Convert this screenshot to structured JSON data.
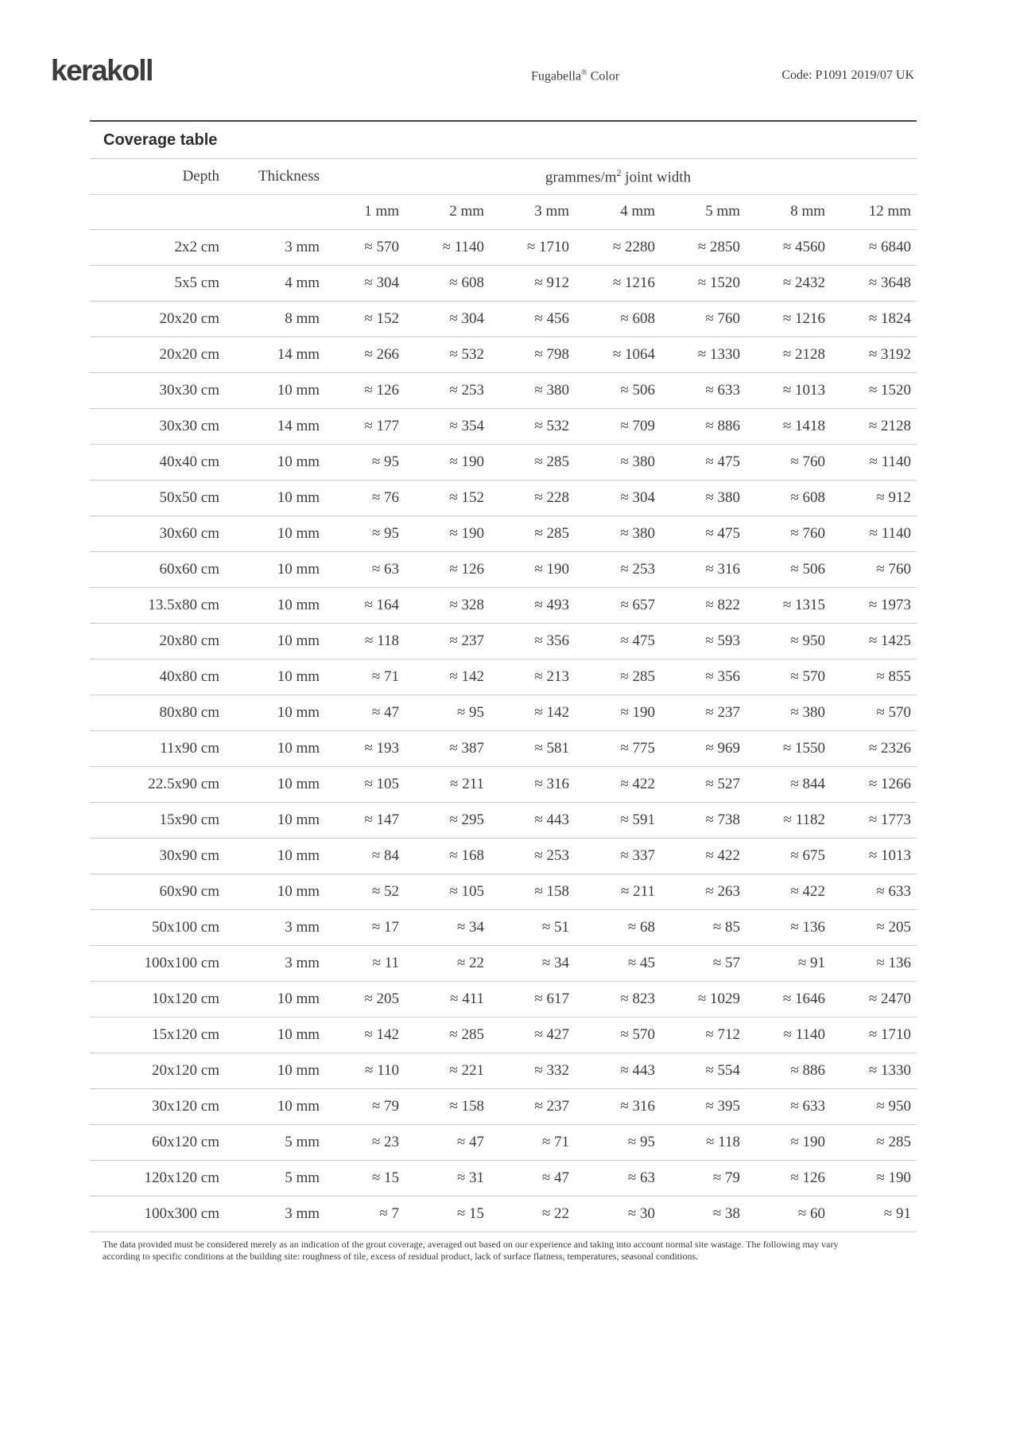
{
  "header": {
    "logo": "kerakoll",
    "product_name": "Fugabella",
    "product_reg": "®",
    "product_suffix": " Color",
    "code": "Code: P1091 2019/07 UK"
  },
  "coverage": {
    "title": "Coverage table",
    "depth_label": "Depth",
    "thickness_label": "Thickness",
    "group_label_main": "grammes/m",
    "group_label_sup": "2",
    "group_label_tail": " joint width",
    "approx_symbol": "≈",
    "joint_widths": [
      "1 mm",
      "2 mm",
      "3 mm",
      "4 mm",
      "5 mm",
      "8 mm",
      "12 mm"
    ],
    "rows": [
      {
        "depth": "2x2 cm",
        "thickness": "3 mm",
        "values": [
          570,
          1140,
          1710,
          2280,
          2850,
          4560,
          6840
        ]
      },
      {
        "depth": "5x5 cm",
        "thickness": "4 mm",
        "values": [
          304,
          608,
          912,
          1216,
          1520,
          2432,
          3648
        ]
      },
      {
        "depth": "20x20 cm",
        "thickness": "8 mm",
        "values": [
          152,
          304,
          456,
          608,
          760,
          1216,
          1824
        ]
      },
      {
        "depth": "20x20 cm",
        "thickness": "14 mm",
        "values": [
          266,
          532,
          798,
          1064,
          1330,
          2128,
          3192
        ]
      },
      {
        "depth": "30x30 cm",
        "thickness": "10 mm",
        "values": [
          126,
          253,
          380,
          506,
          633,
          1013,
          1520
        ]
      },
      {
        "depth": "30x30 cm",
        "thickness": "14 mm",
        "values": [
          177,
          354,
          532,
          709,
          886,
          1418,
          2128
        ]
      },
      {
        "depth": "40x40 cm",
        "thickness": "10 mm",
        "values": [
          95,
          190,
          285,
          380,
          475,
          760,
          1140
        ]
      },
      {
        "depth": "50x50 cm",
        "thickness": "10 mm",
        "values": [
          76,
          152,
          228,
          304,
          380,
          608,
          912
        ]
      },
      {
        "depth": "30x60 cm",
        "thickness": "10 mm",
        "values": [
          95,
          190,
          285,
          380,
          475,
          760,
          1140
        ]
      },
      {
        "depth": "60x60 cm",
        "thickness": "10 mm",
        "values": [
          63,
          126,
          190,
          253,
          316,
          506,
          760
        ]
      },
      {
        "depth": "13.5x80 cm",
        "thickness": "10 mm",
        "values": [
          164,
          328,
          493,
          657,
          822,
          1315,
          1973
        ]
      },
      {
        "depth": "20x80 cm",
        "thickness": "10 mm",
        "values": [
          118,
          237,
          356,
          475,
          593,
          950,
          1425
        ]
      },
      {
        "depth": "40x80 cm",
        "thickness": "10 mm",
        "values": [
          71,
          142,
          213,
          285,
          356,
          570,
          855
        ]
      },
      {
        "depth": "80x80 cm",
        "thickness": "10 mm",
        "values": [
          47,
          95,
          142,
          190,
          237,
          380,
          570
        ]
      },
      {
        "depth": "11x90 cm",
        "thickness": "10 mm",
        "values": [
          193,
          387,
          581,
          775,
          969,
          1550,
          2326
        ]
      },
      {
        "depth": "22.5x90 cm",
        "thickness": "10 mm",
        "values": [
          105,
          211,
          316,
          422,
          527,
          844,
          1266
        ]
      },
      {
        "depth": "15x90 cm",
        "thickness": "10 mm",
        "values": [
          147,
          295,
          443,
          591,
          738,
          1182,
          1773
        ]
      },
      {
        "depth": "30x90 cm",
        "thickness": "10 mm",
        "values": [
          84,
          168,
          253,
          337,
          422,
          675,
          1013
        ]
      },
      {
        "depth": "60x90 cm",
        "thickness": "10 mm",
        "values": [
          52,
          105,
          158,
          211,
          263,
          422,
          633
        ]
      },
      {
        "depth": "50x100 cm",
        "thickness": "3 mm",
        "values": [
          17,
          34,
          51,
          68,
          85,
          136,
          205
        ]
      },
      {
        "depth": "100x100 cm",
        "thickness": "3 mm",
        "values": [
          11,
          22,
          34,
          45,
          57,
          91,
          136
        ]
      },
      {
        "depth": "10x120 cm",
        "thickness": "10 mm",
        "values": [
          205,
          411,
          617,
          823,
          1029,
          1646,
          2470
        ]
      },
      {
        "depth": "15x120 cm",
        "thickness": "10 mm",
        "values": [
          142,
          285,
          427,
          570,
          712,
          1140,
          1710
        ]
      },
      {
        "depth": "20x120 cm",
        "thickness": "10 mm",
        "values": [
          110,
          221,
          332,
          443,
          554,
          886,
          1330
        ]
      },
      {
        "depth": "30x120 cm",
        "thickness": "10 mm",
        "values": [
          79,
          158,
          237,
          316,
          395,
          633,
          950
        ]
      },
      {
        "depth": "60x120 cm",
        "thickness": "5 mm",
        "values": [
          23,
          47,
          71,
          95,
          118,
          190,
          285
        ]
      },
      {
        "depth": "120x120 cm",
        "thickness": "5 mm",
        "values": [
          15,
          31,
          47,
          63,
          79,
          126,
          190
        ]
      },
      {
        "depth": "100x300 cm",
        "thickness": "3 mm",
        "values": [
          7,
          15,
          22,
          30,
          38,
          60,
          91
        ]
      }
    ],
    "footnote_line1": "The data provided must be considered merely as an indication of the grout coverage, averaged out based on our experience and taking into account normal site wastage. The following may vary",
    "footnote_line2": "according to specific conditions at the building site: roughness of tile, excess of residual product, lack of surface flatness, temperatures, seasonal conditions."
  }
}
